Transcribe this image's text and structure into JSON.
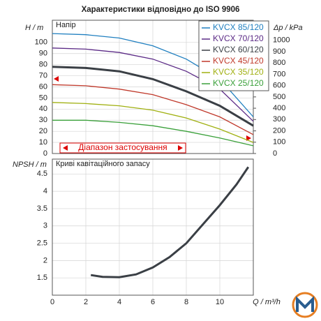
{
  "chart_data": [
    {
      "type": "line",
      "title": "Характеристики відповідно до ISO 9906",
      "y_label": "H / m",
      "y2_label": "Δp / kPa",
      "annotations": [
        "Напір",
        "Діапазон застосування"
      ],
      "x": [
        0,
        2,
        4,
        6,
        8,
        10,
        12
      ],
      "series": [
        {
          "name": "KVCX 85/120",
          "color": "#1f7fc0",
          "values": [
            108,
            107,
            104,
            97,
            85,
            67,
            33
          ]
        },
        {
          "name": "KVCX 70/120",
          "color": "#5b2a86",
          "values": [
            95,
            94,
            91,
            85,
            74,
            58,
            29
          ]
        },
        {
          "name": "KVCX 60/120",
          "color": "#3a3f45",
          "values": [
            78,
            77,
            74,
            67,
            56,
            43,
            25
          ]
        },
        {
          "name": "KVCX 45/120",
          "color": "#c0392b",
          "values": [
            62,
            61,
            58,
            53,
            44,
            33,
            17
          ]
        },
        {
          "name": "KVCX 35/120",
          "color": "#a0b010",
          "values": [
            46,
            45,
            43,
            39,
            32,
            22,
            10
          ]
        },
        {
          "name": "KVCX 25/120",
          "color": "#3aa03a",
          "values": [
            30,
            30,
            28,
            25,
            20,
            14,
            7
          ]
        }
      ],
      "xlim": [
        0,
        12
      ],
      "ylim": [
        0,
        120
      ],
      "yticks": [
        0,
        10,
        20,
        30,
        40,
        50,
        60,
        70,
        80,
        90,
        100
      ],
      "y2lim": [
        0,
        1177
      ],
      "y2ticks": [
        0,
        100,
        200,
        300,
        400,
        500,
        600,
        700,
        800,
        900,
        1000
      ],
      "grid": true,
      "legend": "upper right"
    },
    {
      "type": "line",
      "y_label": "NPSH / m",
      "x_label": "Q / m³/h",
      "annotations": [
        "Криві кавітаційного запасу"
      ],
      "x": [
        2.3,
        3,
        4,
        5,
        6,
        7,
        8,
        9,
        10,
        11,
        11.7
      ],
      "values": [
        1.58,
        1.53,
        1.52,
        1.6,
        1.8,
        2.1,
        2.5,
        3.05,
        3.6,
        4.2,
        4.7
      ],
      "color": "#3a3f45",
      "xlim": [
        0,
        12
      ],
      "ylim": [
        1,
        4.93
      ],
      "xticks": [
        0,
        2,
        4,
        6,
        8,
        10
      ],
      "yticks": [
        1.5,
        2,
        2.5,
        3,
        3.5,
        4,
        4.5
      ],
      "grid": true
    }
  ]
}
